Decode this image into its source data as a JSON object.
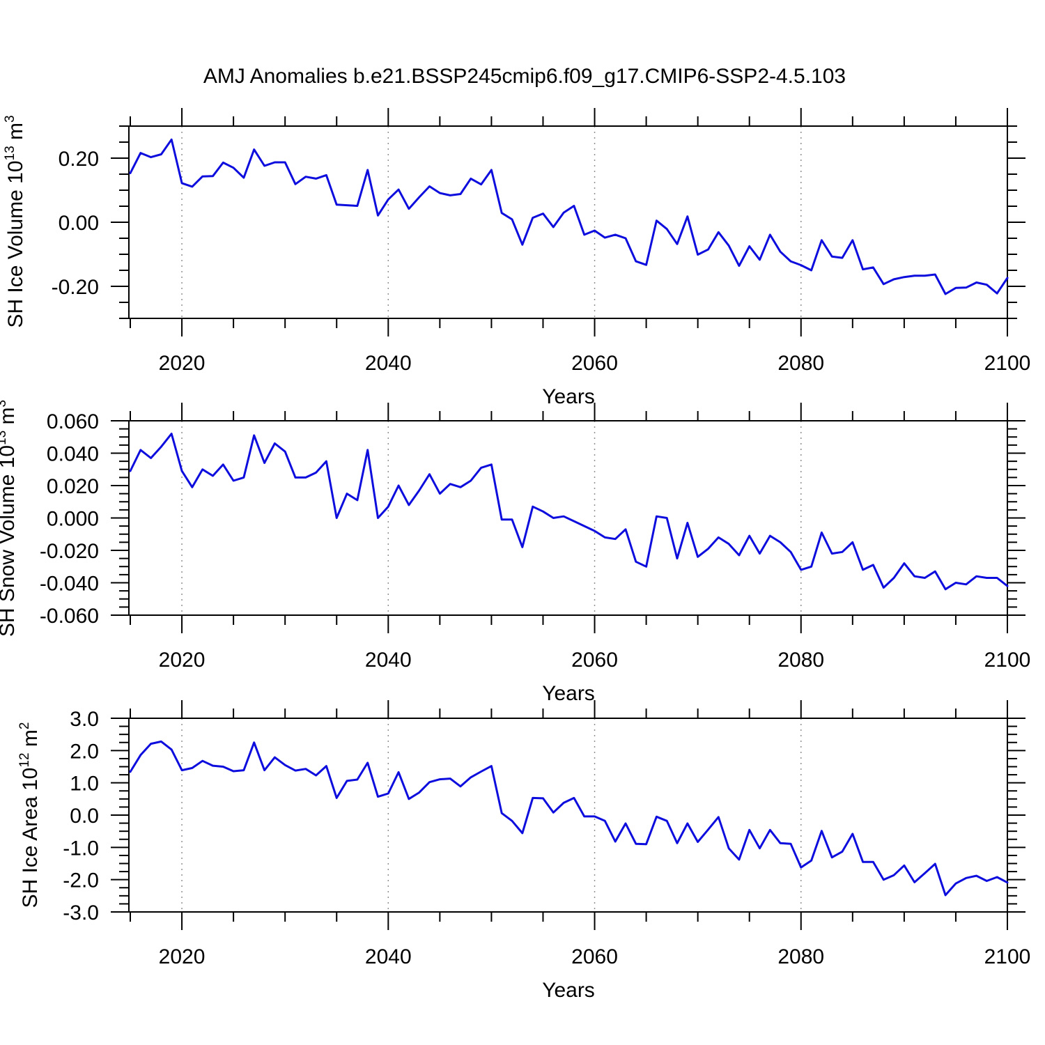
{
  "title": "AMJ Anomalies b.e21.BSSP245cmip6.f09_g17.CMIP6-SSP2-4.5.103",
  "xlabel": "Years",
  "line_color": "#0d0ddd",
  "gridline_color": "#909090",
  "axis_color": "#000000",
  "chart_data": {
    "type": "line",
    "x_start": 2015,
    "x_end": 2100,
    "xlim": [
      2015,
      2100
    ],
    "xticks": [
      2020,
      2040,
      2060,
      2080,
      2100
    ],
    "xtick_labels": [
      "2020",
      "2040",
      "2060",
      "2080",
      "2100"
    ],
    "x_minor_step": 5,
    "vertical_gridlines": [
      2020,
      2040,
      2060,
      2080
    ],
    "grid_style": "dashed",
    "legend": "none",
    "panels": [
      {
        "name": "sh-ice-volume",
        "ylabel_text": "SH Ice Volume 10^13 m^3",
        "ylabel_segments": [
          {
            "t": "SH Ice Volume 10"
          },
          {
            "t": "13",
            "sup": true
          },
          {
            "t": " m"
          },
          {
            "t": "3",
            "sup": true
          }
        ],
        "ylim": [
          -0.3,
          0.3
        ],
        "ytick_major": [
          0.2,
          0.0,
          -0.2
        ],
        "ytick_labels": [
          "0.20",
          "0.00",
          "-0.20"
        ],
        "ytick_minor_step": 0.05,
        "series_name": "SH Ice Volume anomaly",
        "values": [
          0.153,
          0.216,
          0.203,
          0.212,
          0.258,
          0.122,
          0.111,
          0.143,
          0.144,
          0.186,
          0.17,
          0.139,
          0.227,
          0.176,
          0.187,
          0.187,
          0.119,
          0.142,
          0.136,
          0.147,
          0.055,
          0.053,
          0.051,
          0.163,
          0.021,
          0.071,
          0.102,
          0.042,
          0.078,
          0.112,
          0.091,
          0.084,
          0.088,
          0.136,
          0.118,
          0.163,
          0.029,
          0.009,
          -0.07,
          0.014,
          0.027,
          -0.015,
          0.03,
          0.051,
          -0.039,
          -0.026,
          -0.048,
          -0.039,
          -0.05,
          -0.122,
          -0.133,
          0.005,
          -0.021,
          -0.068,
          0.018,
          -0.101,
          -0.085,
          -0.031,
          -0.073,
          -0.136,
          -0.075,
          -0.117,
          -0.039,
          -0.092,
          -0.122,
          -0.134,
          -0.15,
          -0.056,
          -0.107,
          -0.111,
          -0.056,
          -0.147,
          -0.141,
          -0.193,
          -0.178,
          -0.171,
          -0.167,
          -0.167,
          -0.163,
          -0.224,
          -0.205,
          -0.204,
          -0.188,
          -0.195,
          -0.222,
          -0.174
        ]
      },
      {
        "name": "sh-snow-volume",
        "ylabel_text": "SH Snow Volume 10^13 m^3",
        "ylabel_segments": [
          {
            "t": "SH Snow Volume 10"
          },
          {
            "t": "13",
            "sup": true
          },
          {
            "t": " m"
          },
          {
            "t": "3",
            "sup": true
          }
        ],
        "ylim": [
          -0.06,
          0.06
        ],
        "ytick_major": [
          0.06,
          0.04,
          0.02,
          0.0,
          -0.02,
          -0.04,
          -0.06
        ],
        "ytick_labels": [
          "0.060",
          "0.040",
          "0.020",
          "0.000",
          "-0.020",
          "-0.040",
          "-0.060"
        ],
        "ytick_minor_step": 0.005,
        "series_name": "SH Snow Volume anomaly",
        "values": [
          0.029,
          0.042,
          0.037,
          0.044,
          0.052,
          0.029,
          0.019,
          0.03,
          0.026,
          0.033,
          0.023,
          0.025,
          0.051,
          0.034,
          0.046,
          0.041,
          0.025,
          0.025,
          0.028,
          0.035,
          0.0,
          0.015,
          0.011,
          0.042,
          0.0,
          0.007,
          0.02,
          0.008,
          0.017,
          0.027,
          0.015,
          0.021,
          0.019,
          0.023,
          0.031,
          0.033,
          -0.001,
          -0.001,
          -0.018,
          0.007,
          0.004,
          0.0,
          0.001,
          -0.002,
          -0.005,
          -0.008,
          -0.012,
          -0.013,
          -0.007,
          -0.027,
          -0.03,
          0.001,
          0.0,
          -0.025,
          -0.003,
          -0.024,
          -0.019,
          -0.012,
          -0.016,
          -0.023,
          -0.011,
          -0.022,
          -0.011,
          -0.015,
          -0.021,
          -0.032,
          -0.03,
          -0.009,
          -0.022,
          -0.021,
          -0.015,
          -0.032,
          -0.029,
          -0.043,
          -0.037,
          -0.028,
          -0.036,
          -0.037,
          -0.033,
          -0.044,
          -0.04,
          -0.041,
          -0.036,
          -0.037,
          -0.037,
          -0.042
        ]
      },
      {
        "name": "sh-ice-area",
        "ylabel_text": "SH Ice Area 10^12 m^2",
        "ylabel_segments": [
          {
            "t": "SH Ice Area 10"
          },
          {
            "t": "12",
            "sup": true
          },
          {
            "t": " m"
          },
          {
            "t": "2",
            "sup": true
          }
        ],
        "ylim": [
          -3.0,
          3.0
        ],
        "ytick_major": [
          3.0,
          2.0,
          1.0,
          0.0,
          -1.0,
          -2.0,
          -3.0
        ],
        "ytick_labels": [
          "3.0",
          "2.0",
          "1.0",
          "0.0",
          "-1.0",
          "-2.0",
          "-3.0"
        ],
        "ytick_minor_step": 0.25,
        "series_name": "SH Ice Area anomaly",
        "values": [
          1.34,
          1.86,
          2.21,
          2.28,
          2.03,
          1.39,
          1.46,
          1.68,
          1.53,
          1.5,
          1.36,
          1.39,
          2.25,
          1.39,
          1.79,
          1.55,
          1.38,
          1.43,
          1.23,
          1.52,
          0.53,
          1.06,
          1.1,
          1.62,
          0.57,
          0.67,
          1.33,
          0.5,
          0.7,
          1.02,
          1.11,
          1.13,
          0.89,
          1.17,
          1.35,
          1.52,
          0.06,
          -0.18,
          -0.56,
          0.53,
          0.52,
          0.08,
          0.38,
          0.53,
          -0.04,
          -0.04,
          -0.18,
          -0.82,
          -0.26,
          -0.89,
          -0.9,
          -0.05,
          -0.18,
          -0.87,
          -0.26,
          -0.83,
          -0.45,
          -0.06,
          -1.03,
          -1.38,
          -0.46,
          -1.03,
          -0.46,
          -0.87,
          -0.89,
          -1.62,
          -1.41,
          -0.49,
          -1.31,
          -1.13,
          -0.58,
          -1.45,
          -1.45,
          -2.0,
          -1.86,
          -1.56,
          -2.08,
          -1.8,
          -1.51,
          -2.48,
          -2.12,
          -1.95,
          -1.88,
          -2.04,
          -1.92,
          -2.09
        ]
      }
    ]
  }
}
